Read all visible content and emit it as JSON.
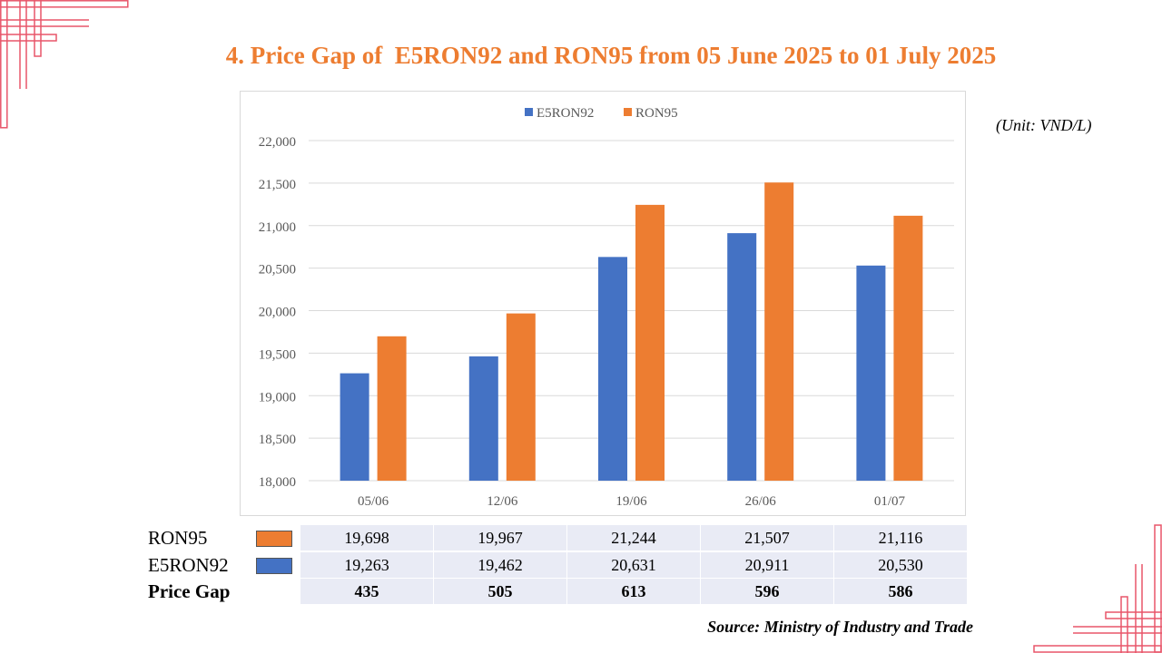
{
  "title": "4. Price Gap of  E5RON92 and RON95 from 05 June 2025 to 01 July 2025",
  "unit": "(Unit: VND/L)",
  "source": "Source: Ministry of Industry and Trade",
  "colors": {
    "accent": "#ED7D31",
    "e5ron92": "#4472C4",
    "ron95": "#ED7D31",
    "corner": "#E8566A"
  },
  "chart_data": {
    "type": "bar",
    "categories": [
      "05/06",
      "12/06",
      "19/06",
      "26/06",
      "01/07"
    ],
    "series": [
      {
        "name": "E5RON92",
        "values": [
          19263,
          19462,
          20631,
          20911,
          20530
        ]
      },
      {
        "name": "RON95",
        "values": [
          19698,
          19967,
          21244,
          21507,
          21116
        ]
      }
    ],
    "ylim": [
      18000,
      22000
    ],
    "yticks": [
      "18,000",
      "18,500",
      "19,000",
      "19,500",
      "20,000",
      "20,500",
      "21,000",
      "21,500",
      "22,000"
    ],
    "grid": true,
    "legend": "top-center"
  },
  "table": {
    "rows": [
      {
        "label": "RON95",
        "swatch": "ron95",
        "values": [
          "19,698",
          "19,967",
          "21,244",
          "21,507",
          "21,116"
        ]
      },
      {
        "label": "E5RON92",
        "swatch": "e5ron92",
        "values": [
          "19,263",
          "19,462",
          "20,631",
          "20,911",
          "20,530"
        ]
      },
      {
        "label": "Price Gap",
        "values": [
          "435",
          "505",
          "613",
          "596",
          "586"
        ]
      }
    ]
  }
}
